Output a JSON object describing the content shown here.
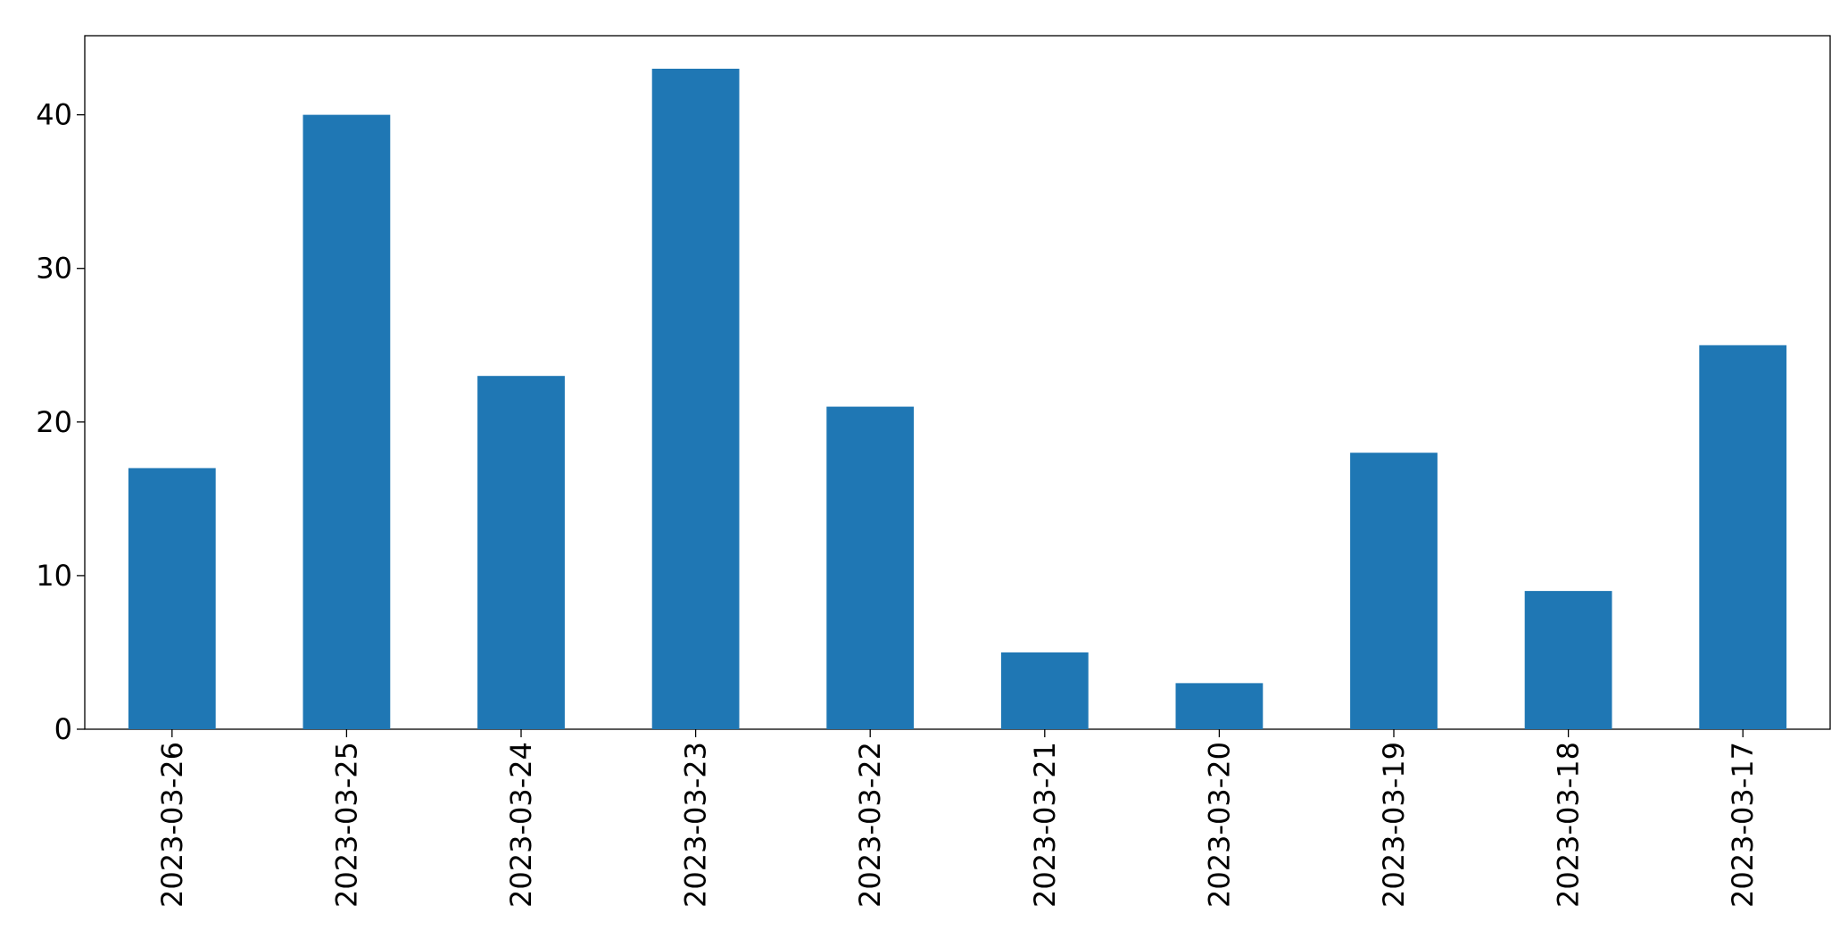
{
  "chart_data": {
    "type": "bar",
    "categories": [
      "2023-03-26",
      "2023-03-25",
      "2023-03-24",
      "2023-03-23",
      "2023-03-22",
      "2023-03-21",
      "2023-03-20",
      "2023-03-19",
      "2023-03-18",
      "2023-03-17"
    ],
    "values": [
      17,
      40,
      23,
      43,
      21,
      5,
      3,
      18,
      9,
      25
    ],
    "color": "#1f77b4",
    "ylim": [
      0,
      45.15
    ],
    "yticks": [
      0,
      10,
      20,
      30,
      40
    ],
    "grid": false
  }
}
